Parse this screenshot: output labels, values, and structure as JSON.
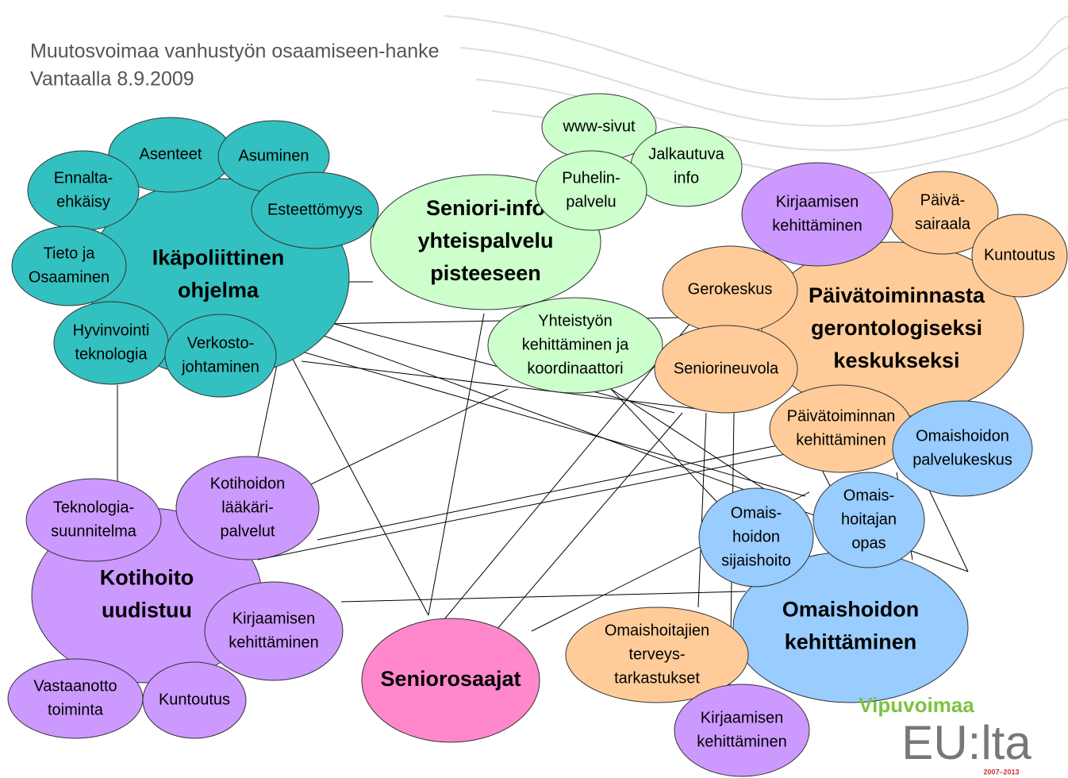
{
  "header": {
    "title_lines": [
      "Muutosvoimaa vanhustyön osaamiseen-hanke",
      "Vantaalla 8.9.2009"
    ]
  },
  "nodes": [
    {
      "label": [
        "Ikäpoliittinen",
        "ohjelma"
      ]
    },
    {
      "label": [
        "Asenteet"
      ]
    },
    {
      "label": [
        "Asuminen"
      ]
    },
    {
      "label": [
        "Ennalta-",
        "ehkäisy"
      ]
    },
    {
      "label": [
        "Esteettömyys"
      ]
    },
    {
      "label": [
        "Tieto ja",
        "Osaaminen"
      ]
    },
    {
      "label": [
        "Hyvinvointi",
        "teknologia"
      ]
    },
    {
      "label": [
        "Verkosto-",
        "johtaminen"
      ]
    },
    {
      "label": [
        "Seniori-info",
        "yhteispalvelu",
        "pisteeseen"
      ]
    },
    {
      "label": [
        "www-sivut"
      ]
    },
    {
      "label": [
        "Jalkautuva",
        "info"
      ]
    },
    {
      "label": [
        "Puhelin-",
        "palvelu"
      ]
    },
    {
      "label": [
        "Yhteistyön",
        "kehittäminen ja",
        "koordinaattori"
      ]
    },
    {
      "label": [
        "Päivätoiminnasta",
        "gerontologiseksi",
        "keskukseksi"
      ]
    },
    {
      "label": [
        "Päivä-",
        "sairaala"
      ]
    },
    {
      "label": [
        "Kuntoutus"
      ]
    },
    {
      "label": [
        "Gerokeskus"
      ]
    },
    {
      "label": [
        "Seniorineuvola"
      ]
    },
    {
      "label": [
        "Päivätoiminnan",
        "kehittäminen"
      ]
    },
    {
      "label": [
        "Omaishoitajien",
        "terveys-",
        "tarkastukset"
      ]
    },
    {
      "label": [
        "Kirjaamisen",
        "kehittäminen"
      ]
    },
    {
      "label": [
        "Kotihoito",
        "uudistuu"
      ]
    },
    {
      "label": [
        "Teknologia-",
        "suunnitelma"
      ]
    },
    {
      "label": [
        "Kotihoidon",
        "lääkäri-",
        "palvelut"
      ]
    },
    {
      "label": [
        "Kirjaamisen",
        "kehittäminen"
      ]
    },
    {
      "label": [
        "Vastaanotto",
        "toiminta"
      ]
    },
    {
      "label": [
        "Kuntoutus"
      ]
    },
    {
      "label": [
        "Kirjaamisen",
        "kehittäminen"
      ]
    },
    {
      "label": [
        "Omaishoidon",
        "kehittäminen"
      ]
    },
    {
      "label": [
        "Omaishoidon",
        "palvelukeskus"
      ]
    },
    {
      "label": [
        "Omais-",
        "hoidon",
        "sijaishoito"
      ]
    },
    {
      "label": [
        "Omais-",
        "hoitajan",
        "opas"
      ]
    },
    {
      "label": [
        "Seniorosaajat"
      ]
    }
  ],
  "logo": {
    "name": "Vipuvoimaa",
    "suffix": "EU:lta",
    "years": "2007–2013"
  }
}
